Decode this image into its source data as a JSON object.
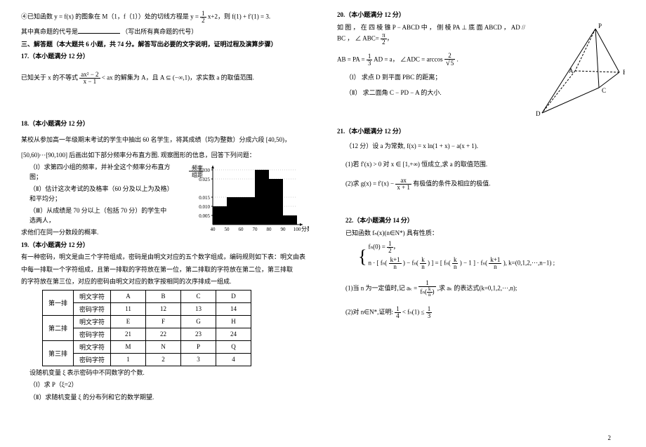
{
  "col1": {
    "p4_pre": "④已知函数 y = f(x) 的图象在 M（1，f（1））处的切线方程是 y = ",
    "frac_half_num": "1",
    "frac_half_den": "2",
    "p4_post": "x+2，则 f(1) + f′(1) = 3.",
    "truth_pre": "其中真命题的代号是",
    "truth_post": "（写出所有真命题的代号）",
    "sec3": "三、解答题（本大题共 6 小题，共 74 分。解答写出必要的文字说明，证明过程及演算步骤）",
    "q17_title": "17.（本小题满分 12 分）",
    "q17_pre": "已知关于 x 的不等式 ",
    "q17_frac_num": "ax² − 2",
    "q17_frac_den": "x − 1",
    "q17_mid": " < ax 的解集为 A，且 A ⊆ (−∞,1)，求实数 a 的取值范围.",
    "q18_title": "18.（本小题满分 12 分）",
    "q18_l1": "某校从参加高一年级期末考试的学生中抽出 60 名学生，将其成绩（均为整数）分成六段 [40,50)，",
    "q18_l2": "[50,60)···[90,100] 后画出如下部分频率分布直方图. 观察图形的信息，回答下列问题：",
    "q18_i": "（Ⅰ）求第四小组的频率，并补全这个频率分布直方图；",
    "q18_ii": "（Ⅱ）估计这次考试的及格率（60 分及以上为及格）和平均分；",
    "q18_iii_a": "（Ⅲ）从成绩是 70 分以上（包括 70 分）的学生中选两人，",
    "q18_iii_b": "求他们在同一分数段的概率.",
    "q19_title": "19.（本小题满分 12 分）",
    "q19_l1": "有一种密码，明文是由三个字符组成，密码是由明文对应的五个数字组成，编码规则如下表：明文由表",
    "q19_l2": "中每一排取一个字符组成，且第一排取的字符放在第一位，第二排取的字符放在第二位，第三排取",
    "q19_l3": "的字符放在第三位，对应的密码由明文对应的数字按相同的次序排成一组成.",
    "q19_rand": "设随机变量 ξ 表示密码中不同数字的个数.",
    "q19_i": "（Ⅰ）求 P（ξ=2）",
    "q19_ii": "（Ⅱ）求随机变量 ξ 的分布列和它的数学期望.",
    "table": {
      "rows": [
        {
          "label": "第一排",
          "r1": [
            "明文字符",
            "A",
            "B",
            "C",
            "D"
          ],
          "r2": [
            "密码字符",
            "11",
            "12",
            "13",
            "14"
          ]
        },
        {
          "label": "第二排",
          "r1": [
            "明文字符",
            "E",
            "F",
            "G",
            "H"
          ],
          "r2": [
            "密码字符",
            "21",
            "22",
            "23",
            "24"
          ]
        },
        {
          "label": "第三排",
          "r1": [
            "明文字符",
            "M",
            "N",
            "P",
            "Q"
          ],
          "r2": [
            "密码字符",
            "1",
            "2",
            "3",
            "4"
          ]
        }
      ]
    }
  },
  "chart": {
    "ylabel1": "频率",
    "ylabel2": "组距",
    "xlabel": "分数",
    "ylim_max": 0.03,
    "yticks": [
      "0.005",
      "0.010",
      "0.015",
      "0.025",
      "0.030"
    ],
    "xticks": [
      "40",
      "50",
      "60",
      "70",
      "80",
      "90",
      "100"
    ],
    "bars": [
      {
        "x": 40,
        "h": 0.01
      },
      {
        "x": 50,
        "h": 0.015
      },
      {
        "x": 60,
        "h": 0.015
      },
      {
        "x": 70,
        "h": 0.03
      },
      {
        "x": 80,
        "h": 0.025
      },
      {
        "x": 90,
        "h": 0.005
      }
    ],
    "bar_color": "#000000",
    "bg_color": "#ffffff",
    "axis_color": "#000000"
  },
  "col2": {
    "q20_title": "20.（本小题满分 12 分）",
    "q20_l1_a": "如 图 ， 在 四 棱 锥 P − ABCD 中 ， 侧 棱 PA ⊥ 底 面 ABCD ，  AD // BC  ， ∠ ABC= ",
    "pi_num": "π",
    "pi_den": "2",
    "q20_l2_a": "AB = PA = ",
    "third_num": "1",
    "third_den": "3",
    "q20_l2_b": " AD = a，  ∠ADC = arccos ",
    "arccos_num": "2",
    "arccos_den_sqrt": "5",
    "q20_l2_c": ".",
    "q20_i": "（Ⅰ） 求点 D 到平面 PBC 的距离；",
    "q20_ii": "（Ⅱ） 求二面角 C − PD − A 的大小.",
    "q21_title": "21.（本小题满分 12 分）",
    "q21_l1": "（12 分）设 a 为常数, f(x) = x ln(1 + x) − a(x + 1).",
    "q21_i": "(1)若 f′(x) > 0 对 x ∈ [1,+∞) 恒成立,求 a 的取值范围.",
    "q21_ii_a": "(2)求 g(x) = f′(x) − ",
    "g_num": "ax",
    "g_den": "x + 1",
    "q21_ii_b": " 有极值的条件及相应的极值.",
    "q22_title": "22.（本小题满分 14 分）",
    "q22_l1": "已知函数 fₙ(x)(n∈N*) 具有性质：",
    "q22_case1_a": "fₙ(0) = ",
    "half_num": "1",
    "half_den": "2",
    "q22_case2_a": "n · [ fₙ( ",
    "kp1_num": "k+1",
    "kp1_den": "n",
    "q22_case2_b": " ) − fₙ( ",
    "k_num": "k",
    "k_den": "n",
    "q22_case2_c": " ) ] = [ fₙ( ",
    "q22_case2_d": " ) − 1 ] · fₙ( ",
    "q22_case2_e": " ), k=(0,1,2,···,n−1) ;",
    "q22_i_a": "(1)当 n 为一定值时,记 aₖ = ",
    "ak_num": "1",
    "ak_den_a": "fₙ(",
    "ak_den_b": ")",
    "q22_i_b": " ,求 aₖ 的表达式(k=0,1,2,···,n);",
    "q22_ii_a": "(2)对 n∈N*,证明: ",
    "quarter_num": "1",
    "quarter_den": "4",
    "q22_ii_b": " < fₙ(1) ≤ ",
    "third2_num": "1",
    "third2_den": "3"
  },
  "pyramid": {
    "labels": {
      "P": "P",
      "A": "A",
      "B": "B",
      "C": "C",
      "D": "D"
    },
    "line_color": "#000000"
  },
  "page_num": "2"
}
